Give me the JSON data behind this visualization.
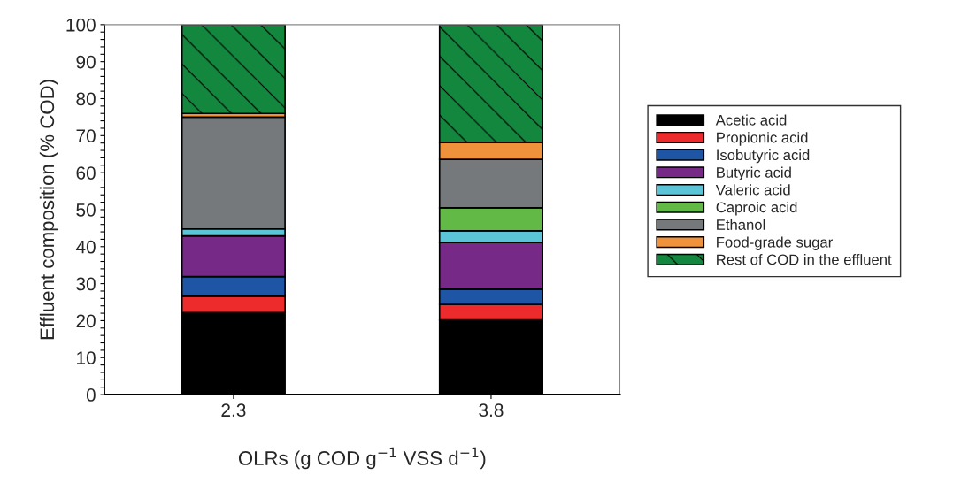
{
  "chart_data": {
    "type": "bar",
    "stacked": true,
    "categories": [
      "2.3",
      "3.8"
    ],
    "xlabel": "OLRs (g COD g$^{−1}$ VSS d$^{−1}$)",
    "ylabel": "Effluent composition (% COD)",
    "ylim": [
      0,
      100
    ],
    "yticks": [
      0,
      {
        "value": 2,
        "label": null
      },
      {
        "value": 4,
        "label": null
      },
      {
        "value": 6,
        "label": null
      },
      {
        "value": 8,
        "label": null
      },
      10,
      {
        "value": 12,
        "label": null
      },
      {
        "value": 14,
        "label": null
      },
      {
        "value": 16,
        "label": null
      },
      {
        "value": 18,
        "label": null
      },
      20,
      {
        "value": 22,
        "label": null
      },
      {
        "value": 24,
        "label": null
      },
      {
        "value": 26,
        "label": null
      },
      {
        "value": 28,
        "label": null
      },
      30,
      {
        "value": 32,
        "label": null
      },
      {
        "value": 34,
        "label": null
      },
      {
        "value": 36,
        "label": null
      },
      {
        "value": 38,
        "label": null
      },
      40,
      {
        "value": 42,
        "label": null
      },
      {
        "value": 44,
        "label": null
      },
      {
        "value": 46,
        "label": null
      },
      {
        "value": 48,
        "label": null
      },
      50,
      {
        "value": 52,
        "label": null
      },
      {
        "value": 54,
        "label": null
      },
      {
        "value": 56,
        "label": null
      },
      {
        "value": 58,
        "label": null
      },
      60,
      {
        "value": 62,
        "label": null
      },
      {
        "value": 64,
        "label": null
      },
      {
        "value": 66,
        "label": null
      },
      {
        "value": 68,
        "label": null
      },
      70,
      {
        "value": 72,
        "label": null
      },
      {
        "value": 74,
        "label": null
      },
      {
        "value": 76,
        "label": null
      },
      {
        "value": 78,
        "label": null
      },
      80,
      {
        "value": 82,
        "label": null
      },
      {
        "value": 84,
        "label": null
      },
      {
        "value": 86,
        "label": null
      },
      {
        "value": 88,
        "label": null
      },
      90,
      {
        "value": 92,
        "label": null
      },
      {
        "value": 94,
        "label": null
      },
      {
        "value": 96,
        "label": null
      },
      {
        "value": 98,
        "label": null
      },
      100
    ],
    "grid": false,
    "legend": "right",
    "series": [
      {
        "name": "Acetic acid",
        "color": "#000000",
        "values": [
          22.2,
          20.2
        ]
      },
      {
        "name": "Propionic acid",
        "color": "#ee2b2c",
        "values": [
          4.4,
          4.2
        ]
      },
      {
        "name": "Isobutyric acid",
        "color": "#1f55a5",
        "values": [
          5.3,
          4.1
        ]
      },
      {
        "name": "Butyric acid",
        "color": "#772988",
        "values": [
          11.0,
          12.6
        ]
      },
      {
        "name": "Valeric acid",
        "color": "#5bc5d7",
        "values": [
          1.9,
          3.2
        ]
      },
      {
        "name": "Caproic acid",
        "color": "#62b946",
        "values": [
          null,
          6.2
        ]
      },
      {
        "name": "Ethanol",
        "color": "#76797b",
        "values": [
          30.2,
          13.1
        ]
      },
      {
        "name": "Food-grade sugar",
        "color": "#f0923c",
        "values": [
          1.0,
          4.6
        ]
      },
      {
        "name": "Rest of COD in the effluent",
        "color": "#14873f",
        "values": [
          24.0,
          31.8
        ]
      }
    ]
  }
}
